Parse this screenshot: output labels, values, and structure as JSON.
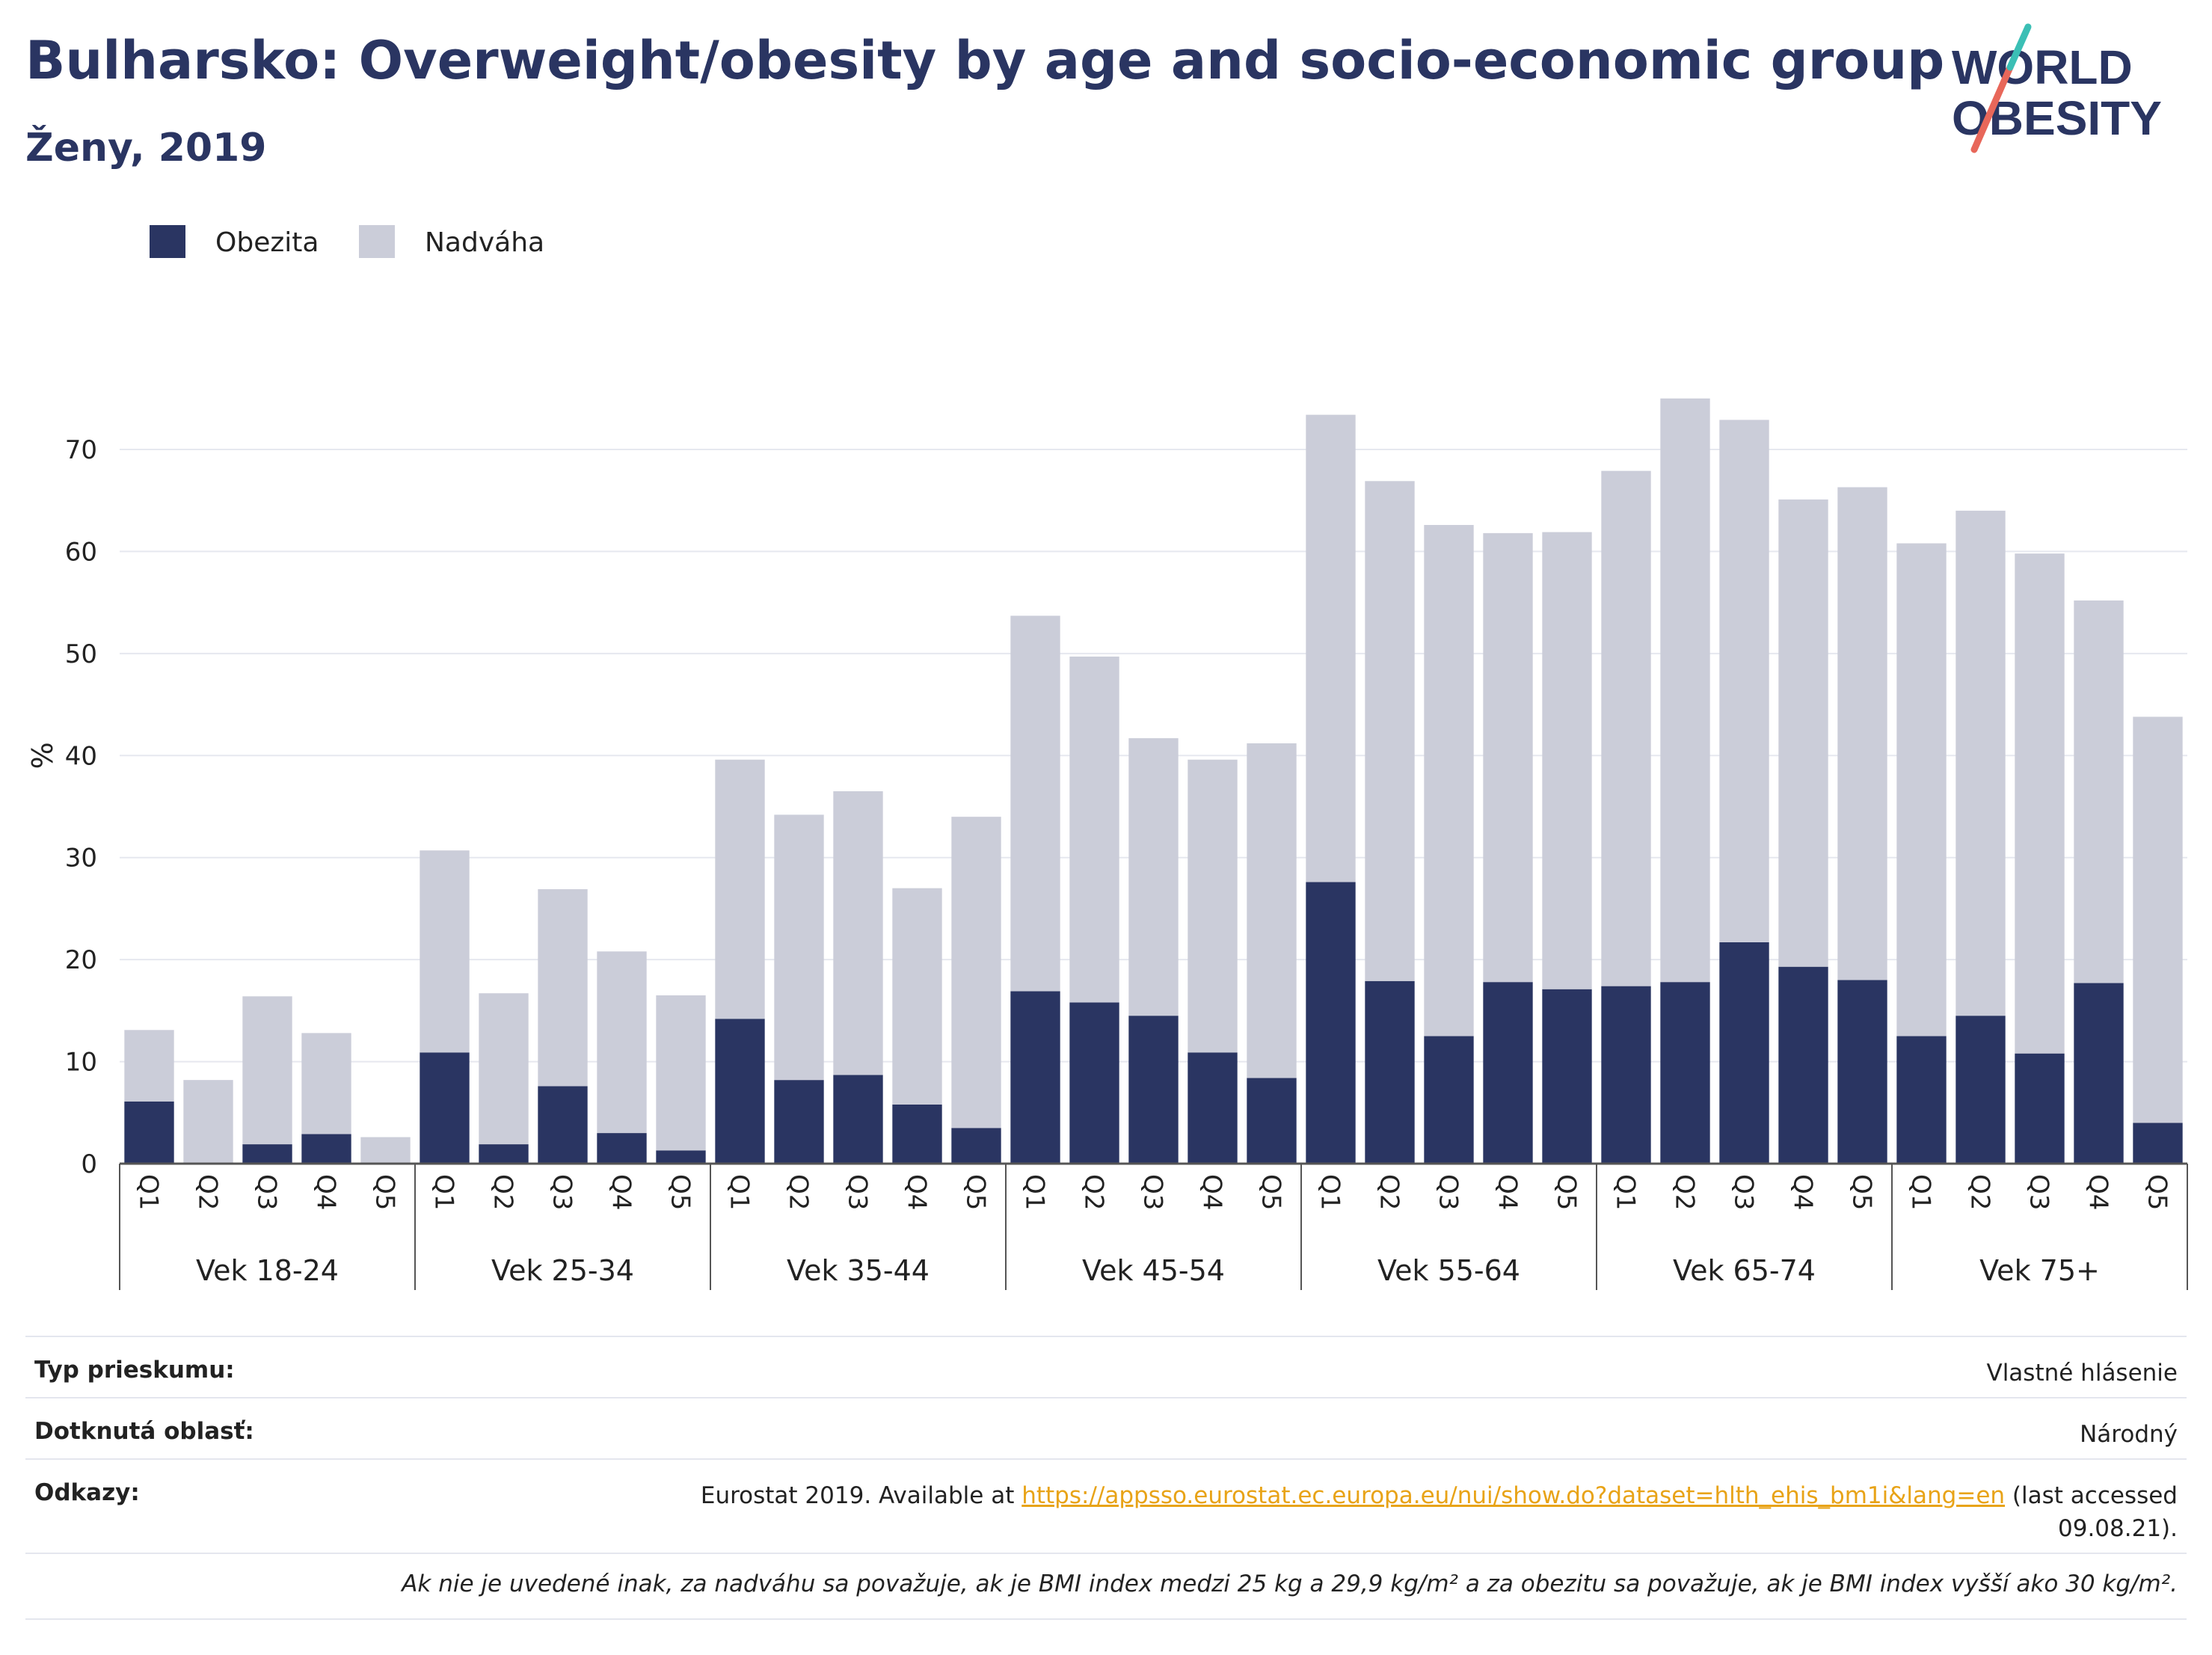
{
  "title": "Bulharsko: Overweight/obesity by age and socio-economic group",
  "subtitle": "Ženy, 2019",
  "logo": {
    "line1": "WORLD",
    "line2": "OBESITY"
  },
  "colors": {
    "obesity": "#2a3562",
    "overweight": "#cbcdd9",
    "title": "#2a3562",
    "link": "#e8a317"
  },
  "chart_data": {
    "type": "bar",
    "stacked": true,
    "ylabel": "%",
    "yticks": [
      0,
      10,
      20,
      30,
      40,
      50,
      60,
      70
    ],
    "ylim": [
      0,
      80
    ],
    "grid": true,
    "legend_position": "top-left",
    "groups": [
      "Vek 18-24",
      "Vek 25-34",
      "Vek 35-44",
      "Vek 45-54",
      "Vek 55-64",
      "Vek 65-74",
      "Vek 75+"
    ],
    "categories": [
      "Q1",
      "Q2",
      "Q3",
      "Q4",
      "Q5"
    ],
    "series": [
      {
        "name": "Obezita",
        "values": [
          [
            6.1,
            0,
            1.9,
            2.9,
            0
          ],
          [
            10.9,
            1.9,
            7.6,
            3.0,
            1.3
          ],
          [
            14.2,
            8.2,
            8.7,
            5.8,
            3.5
          ],
          [
            16.9,
            15.8,
            14.5,
            10.9,
            8.4
          ],
          [
            27.6,
            17.9,
            12.5,
            17.8,
            17.1
          ],
          [
            17.4,
            17.8,
            21.7,
            19.3,
            18.0
          ],
          [
            12.5,
            14.5,
            10.8,
            17.7,
            4.0
          ]
        ]
      },
      {
        "name": "Nadváha",
        "values": [
          [
            7.0,
            8.2,
            14.5,
            9.9,
            2.6
          ],
          [
            19.8,
            14.8,
            19.3,
            17.8,
            15.2
          ],
          [
            25.4,
            26.0,
            27.8,
            21.2,
            30.5
          ],
          [
            36.8,
            33.9,
            27.2,
            28.7,
            32.8
          ],
          [
            45.8,
            49.0,
            50.1,
            44.0,
            44.8
          ],
          [
            50.5,
            57.2,
            51.2,
            45.8,
            48.3
          ],
          [
            48.3,
            49.5,
            49.0,
            37.5,
            39.8
          ]
        ]
      }
    ]
  },
  "info": {
    "survey_label": "Typ prieskumu:",
    "survey_value": "Vlastné hlásenie",
    "area_label": "Dotknutá oblasť:",
    "area_value": "Národný",
    "refs_label": "Odkazy:",
    "refs_prefix": "Eurostat 2019. Available at ",
    "refs_link": "https://appsso.eurostat.ec.europa.eu/nui/show.do?dataset=hlth_ehis_bm1i&lang=en",
    "refs_suffix": " (last accessed",
    "refs_date": "09.08.21).",
    "note": "Ak nie je uvedené inak, za nadváhu sa považuje, ak je BMI index medzi 25 kg a 29,9 kg/m² a za obezitu sa považuje, ak je BMI index vyšší ako 30 kg/m²."
  }
}
